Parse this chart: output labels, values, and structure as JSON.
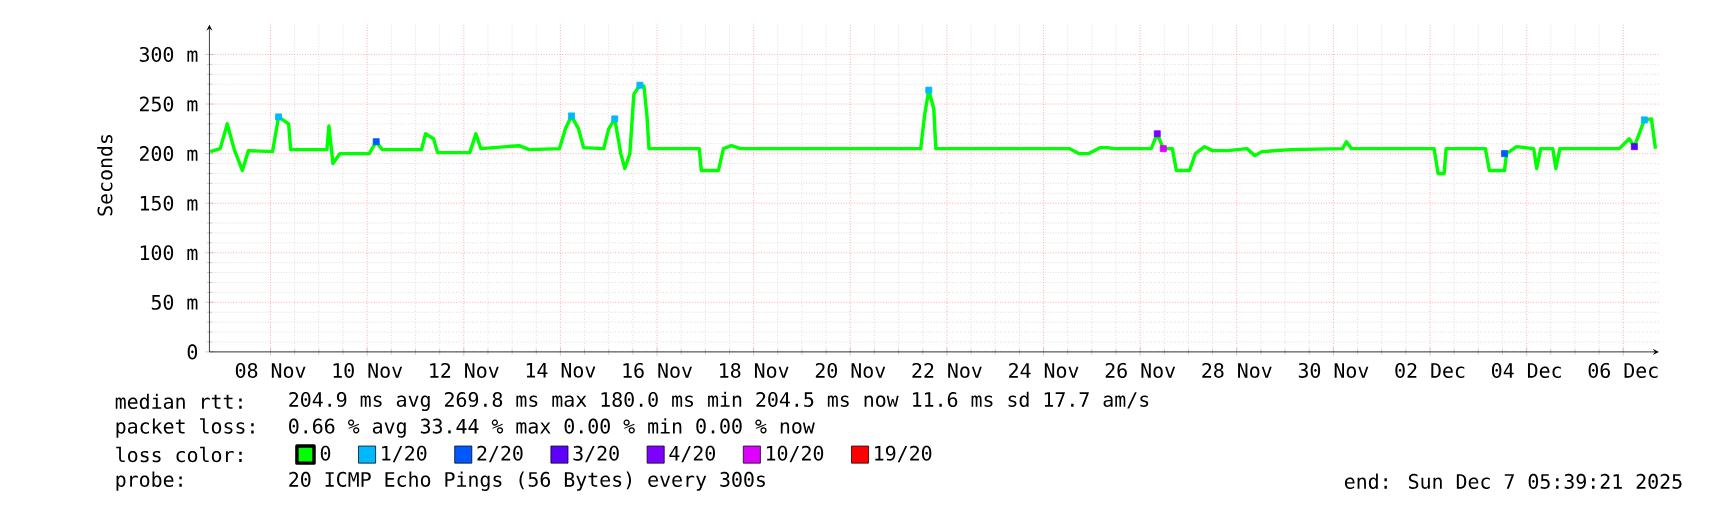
{
  "chart_data": {
    "type": "line",
    "ylabel": "Seconds",
    "legend_title": "loss color:",
    "legend": "bottom",
    "grid": true,
    "xlim": [
      "2025-11-07T05:39",
      "2025-12-07T05:39"
    ],
    "xticks": [
      {
        "value": "2025-11-08T12:00",
        "label": "08 Nov"
      },
      {
        "value": "2025-11-10T12:00",
        "label": "10 Nov"
      },
      {
        "value": "2025-11-12T12:00",
        "label": "12 Nov"
      },
      {
        "value": "2025-11-14T12:00",
        "label": "14 Nov"
      },
      {
        "value": "2025-11-16T12:00",
        "label": "16 Nov"
      },
      {
        "value": "2025-11-18T12:00",
        "label": "18 Nov"
      },
      {
        "value": "2025-11-20T12:00",
        "label": "20 Nov"
      },
      {
        "value": "2025-11-22T12:00",
        "label": "22 Nov"
      },
      {
        "value": "2025-11-24T12:00",
        "label": "24 Nov"
      },
      {
        "value": "2025-11-26T12:00",
        "label": "26 Nov"
      },
      {
        "value": "2025-11-28T12:00",
        "label": "28 Nov"
      },
      {
        "value": "2025-11-30T12:00",
        "label": "30 Nov"
      },
      {
        "value": "2025-12-02T12:00",
        "label": "02 Dec"
      },
      {
        "value": "2025-12-04T12:00",
        "label": "04 Dec"
      },
      {
        "value": "2025-12-06T12:00",
        "label": "06 Dec"
      }
    ],
    "ylim": [
      0,
      330
    ],
    "yticks": [
      0,
      {
        "value": 50,
        "label": "50 m"
      },
      {
        "value": 100,
        "label": "100 m"
      },
      {
        "value": 150,
        "label": "150 m"
      },
      {
        "value": 200,
        "label": "200 m"
      },
      {
        "value": 250,
        "label": "250 m"
      },
      {
        "value": 300,
        "label": "300 m"
      }
    ],
    "series": [
      {
        "name": "0",
        "color": "#00ff00",
        "x": [
          "2025-11-07T06:00",
          "2025-11-07T11:00",
          "2025-11-07T14:30",
          "2025-11-07T18:00",
          "2025-11-07T22:00",
          "2025-11-08T01:00",
          "2025-11-08T13:00",
          "2025-11-08T16:00",
          "2025-11-08T21:00",
          "2025-11-08T22:00",
          "2025-11-09T16:00",
          "2025-11-09T17:00",
          "2025-11-09T19:00",
          "2025-11-09T22:30",
          "2025-11-10T13:00",
          "2025-11-10T16:30",
          "2025-11-10T19:30",
          "2025-11-11T15:00",
          "2025-11-11T17:00",
          "2025-11-11T21:00",
          "2025-11-11T23:00",
          "2025-11-12T15:00",
          "2025-11-12T18:00",
          "2025-11-12T20:30",
          "2025-11-13T15:30",
          "2025-11-13T20:30",
          "2025-11-14T11:30",
          "2025-11-14T14:30",
          "2025-11-14T17:30",
          "2025-11-14T21:00",
          "2025-11-14T23:30",
          "2025-11-15T09:30",
          "2025-11-15T12:00",
          "2025-11-15T15:00",
          "2025-11-15T18:00",
          "2025-11-15T20:00",
          "2025-11-15T22:30",
          "2025-11-16T00:30",
          "2025-11-16T03:30",
          "2025-11-16T05:30",
          "2025-11-16T07:00",
          "2025-11-16T08:00",
          "2025-11-17T09:00",
          "2025-11-17T10:00",
          "2025-11-17T18:30",
          "2025-11-17T21:00",
          "2025-11-18T01:00",
          "2025-11-18T05:30",
          "2025-11-20T10:00",
          "2025-11-21T23:00",
          "2025-11-22T01:00",
          "2025-11-22T03:00",
          "2025-11-22T05:30",
          "2025-11-22T06:30",
          "2025-11-24T08:30",
          "2025-11-25T01:00",
          "2025-11-25T05:30",
          "2025-11-25T10:30",
          "2025-11-25T16:00",
          "2025-11-25T20:00",
          "2025-11-25T22:30",
          "2025-11-26T17:30",
          "2025-11-26T20:30",
          "2025-11-26T23:30",
          "2025-11-27T04:00",
          "2025-11-27T06:00",
          "2025-11-27T12:30",
          "2025-11-27T15:30",
          "2025-11-27T20:00",
          "2025-11-28T00:00",
          "2025-11-28T07:30",
          "2025-11-28T17:00",
          "2025-11-28T21:00",
          "2025-11-29T00:30",
          "2025-11-29T15:00",
          "2025-11-30T16:30",
          "2025-11-30T18:30",
          "2025-11-30T21:00",
          "2025-12-02T14:00",
          "2025-12-02T16:00",
          "2025-12-02T19:00",
          "2025-12-02T20:00",
          "2025-12-03T15:30",
          "2025-12-03T17:30",
          "2025-12-04T01:00",
          "2025-12-04T02:00",
          "2025-12-04T07:00",
          "2025-12-04T15:30",
          "2025-12-04T17:00",
          "2025-12-04T19:00",
          "2025-12-05T01:00",
          "2025-12-05T02:30",
          "2025-12-05T04:30",
          "2025-12-06T10:00",
          "2025-12-06T15:00",
          "2025-12-06T17:30",
          "2025-12-06T22:30",
          "2025-12-07T02:00",
          "2025-12-07T04:00"
        ],
        "values": [
          202,
          205,
          230,
          204,
          183,
          203,
          202,
          237,
          230,
          204,
          204,
          228,
          190,
          200,
          200,
          212,
          204,
          204,
          220,
          215,
          201,
          201,
          220,
          205,
          208,
          204,
          205,
          225,
          238,
          225,
          206,
          205,
          225,
          235,
          200,
          185,
          200,
          260,
          269,
          268,
          238,
          205,
          205,
          183,
          183,
          205,
          208,
          205,
          205,
          205,
          240,
          264,
          245,
          205,
          205,
          205,
          200,
          200,
          206,
          206,
          205,
          205,
          220,
          205,
          205,
          183,
          183,
          200,
          207,
          203,
          203,
          205,
          198,
          202,
          204,
          205,
          212,
          205,
          205,
          180,
          180,
          205,
          205,
          183,
          183,
          200,
          207,
          205,
          185,
          205,
          205,
          185,
          205,
          205,
          215,
          207,
          234,
          235,
          205
        ]
      },
      {
        "name": "1/20",
        "color": "#00b8ff",
        "type": "scatter",
        "marker": "square",
        "x": [
          "2025-11-08T16:00",
          "2025-11-14T17:30",
          "2025-11-15T15:00",
          "2025-11-16T03:30",
          "2025-11-22T03:00",
          "2025-12-06T22:30"
        ],
        "values": [
          237,
          238,
          235,
          269,
          264,
          234
        ]
      },
      {
        "name": "2/20",
        "color": "#0059ff",
        "type": "scatter",
        "marker": "square",
        "x": [
          "2025-11-10T16:30",
          "2025-12-04T01:00"
        ],
        "values": [
          212,
          200
        ]
      },
      {
        "name": "3/20",
        "color": "#5e00ff",
        "type": "scatter",
        "marker": "square",
        "x": [
          "2025-12-06T17:30"
        ],
        "values": [
          207
        ]
      },
      {
        "name": "4/20",
        "color": "#7e00ff",
        "type": "scatter",
        "marker": "square",
        "x": [
          "2025-11-26T20:30"
        ],
        "values": [
          220
        ]
      },
      {
        "name": "10/20",
        "color": "#dd00ff",
        "type": "scatter",
        "marker": "square",
        "x": [
          "2025-11-26T23:30"
        ],
        "values": [
          205
        ]
      },
      {
        "name": "19/20",
        "color": "#ff0000",
        "type": "scatter",
        "marker": "square"
      }
    ],
    "annotations": [
      "median rtt:",
      "204.9 ms avg  269.8 ms max  180.0 ms min  204.5 ms now  11.6 ms sd  17.7   am/s",
      "packet loss:",
      "0.66 % avg  33.44 % max  0.00 % min  0.00 % now",
      "probe:",
      "20 ICMP Echo Pings (56 Bytes) every 300s",
      "end: Sun Dec  7 05:39:21 2025"
    ]
  }
}
